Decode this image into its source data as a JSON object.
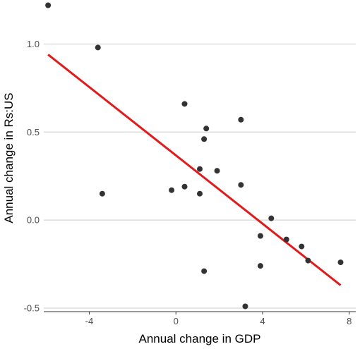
{
  "chart_data": {
    "type": "scatter",
    "title": "",
    "xlabel": "Annual change in GDP",
    "ylabel": "Annual change in Rs:US",
    "xlim": [
      -6.1,
      8.3
    ],
    "ylim": [
      -0.52,
      1.25
    ],
    "x_ticks": [
      -4,
      0,
      4,
      8
    ],
    "x_tick_labels": [
      "-4",
      "0",
      "4",
      "8"
    ],
    "y_ticks": [
      1.0,
      0.5,
      0.0,
      -0.5
    ],
    "y_tick_labels": [
      "1.0",
      "0.5",
      "0.0",
      "-0.5"
    ],
    "grid": "horizontal-major",
    "point_color": "#333333",
    "points": [
      {
        "x": -5.9,
        "y": 1.22
      },
      {
        "x": -3.6,
        "y": 0.98
      },
      {
        "x": -3.4,
        "y": 0.15
      },
      {
        "x": -0.2,
        "y": 0.17
      },
      {
        "x": 0.4,
        "y": 0.66
      },
      {
        "x": 0.4,
        "y": 0.19
      },
      {
        "x": 1.1,
        "y": 0.29
      },
      {
        "x": 1.1,
        "y": 0.15
      },
      {
        "x": 1.3,
        "y": 0.46
      },
      {
        "x": 1.4,
        "y": 0.52
      },
      {
        "x": 1.3,
        "y": -0.29
      },
      {
        "x": 1.9,
        "y": 0.28
      },
      {
        "x": 3.0,
        "y": 0.57
      },
      {
        "x": 3.0,
        "y": 0.2
      },
      {
        "x": 3.2,
        "y": -0.49
      },
      {
        "x": 3.9,
        "y": -0.09
      },
      {
        "x": 3.9,
        "y": -0.26
      },
      {
        "x": 4.4,
        "y": 0.01
      },
      {
        "x": 5.1,
        "y": -0.11
      },
      {
        "x": 5.8,
        "y": -0.15
      },
      {
        "x": 6.1,
        "y": -0.23
      },
      {
        "x": 7.6,
        "y": -0.24
      }
    ],
    "trend_line": {
      "color": "#e31a1c",
      "x": [
        -5.9,
        7.6
      ],
      "y": [
        0.94,
        -0.37
      ]
    }
  }
}
